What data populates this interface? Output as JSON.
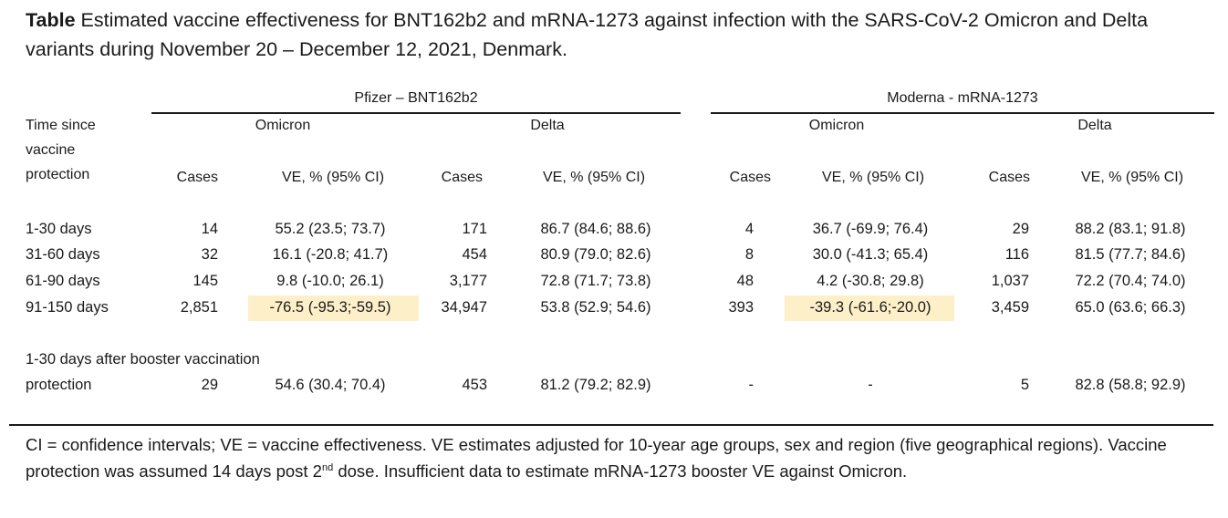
{
  "title": {
    "bold": "Table",
    "text": " Estimated vaccine effectiveness for BNT162b2 and mRNA-1273 against infection with the SARS-CoV-2 Omicron and Delta variants during November 20 – December 12, 2021, Denmark."
  },
  "groups": {
    "pfizer": "Pfizer – BNT162b2",
    "moderna": "Moderna - mRNA-1273"
  },
  "subgroups": {
    "p_omicron": "Omicron",
    "p_delta": "Delta",
    "m_omicron": "Omicron",
    "m_delta": "Delta"
  },
  "row_header": {
    "line1": "Time since",
    "line2": "vaccine",
    "line3": "protection"
  },
  "columns": {
    "cases": "Cases",
    "ve": "VE, % (95% CI)"
  },
  "rows": [
    {
      "label": "1-30 days",
      "pc_o": "14",
      "pv_o": "55.2 (23.5; 73.7)",
      "pc_d": "171",
      "pv_d": "86.7 (84.6; 88.6)",
      "mc_o": "4",
      "mv_o": "36.7 (-69.9; 76.4)",
      "mc_d": "29",
      "mv_d": "88.2 (83.1; 91.8)"
    },
    {
      "label": "31-60 days",
      "pc_o": "32",
      "pv_o": "16.1 (-20.8; 41.7)",
      "pc_d": "454",
      "pv_d": "80.9 (79.0; 82.6)",
      "mc_o": "8",
      "mv_o": "30.0 (-41.3; 65.4)",
      "mc_d": "116",
      "mv_d": "81.5 (77.7; 84.6)"
    },
    {
      "label": "61-90 days",
      "pc_o": "145",
      "pv_o": "9.8 (-10.0; 26.1)",
      "pc_d": "3,177",
      "pv_d": "72.8 (71.7; 73.8)",
      "mc_o": "48",
      "mv_o": "4.2 (-30.8; 29.8)",
      "mc_d": "1,037",
      "mv_d": "72.2 (70.4; 74.0)"
    },
    {
      "label": "91-150 days",
      "pc_o": "2,851",
      "pv_o": "-76.5 (-95.3;-59.5)",
      "pc_d": "34,947",
      "pv_d": "53.8 (52.9; 54.6)",
      "mc_o": "393",
      "mv_o": "-39.3 (-61.6;-20.0)",
      "mc_d": "3,459",
      "mv_d": "65.0 (63.6; 66.3)"
    }
  ],
  "booster": {
    "heading": "1-30 days after booster vaccination",
    "label": "protection",
    "pc_o": "29",
    "pv_o": "54.6 (30.4; 70.4)",
    "pc_d": "453",
    "pv_d": "81.2 (79.2; 82.9)",
    "mc_o": "-",
    "mv_o": "-",
    "mc_d": "5",
    "mv_d": "82.8 (58.8; 92.9)"
  },
  "footnote": {
    "part1": "CI = confidence intervals; VE = vaccine effectiveness. VE estimates adjusted for 10-year age groups, sex and region (five geographical regions). Vaccine protection was assumed 14 days post 2",
    "sup": "nd",
    "part2": " dose. Insufficient data to estimate mRNA-1273 booster VE against Omicron."
  },
  "colors": {
    "highlight": "#fdf0c9",
    "text": "#1a1a1a"
  }
}
